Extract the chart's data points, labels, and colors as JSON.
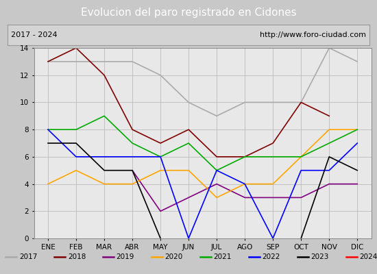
{
  "title": "Evolucion del paro registrado en Cidones",
  "subtitle_left": "2017 - 2024",
  "subtitle_right": "http://www.foro-ciudad.com",
  "months": [
    "ENE",
    "FEB",
    "MAR",
    "ABR",
    "MAY",
    "JUN",
    "JUL",
    "AGO",
    "SEP",
    "OCT",
    "NOV",
    "DIC"
  ],
  "ylim": [
    0,
    14
  ],
  "yticks": [
    0,
    2,
    4,
    6,
    8,
    10,
    12,
    14
  ],
  "series": {
    "2017": {
      "color": "#aaaaaa",
      "values": [
        13,
        13,
        13,
        13,
        12,
        10,
        9,
        10,
        10,
        10,
        14,
        13
      ]
    },
    "2018": {
      "color": "#800000",
      "values": [
        13,
        14,
        12,
        8,
        7,
        8,
        6,
        6,
        7,
        10,
        9,
        null
      ]
    },
    "2019": {
      "color": "#800080",
      "values": [
        7,
        null,
        null,
        5,
        2,
        3,
        4,
        3,
        3,
        3,
        4,
        4
      ]
    },
    "2020": {
      "color": "#ffa500",
      "values": [
        4,
        5,
        4,
        4,
        5,
        5,
        3,
        4,
        4,
        6,
        8,
        8
      ]
    },
    "2021": {
      "color": "#00aa00",
      "values": [
        8,
        8,
        9,
        7,
        6,
        7,
        5,
        6,
        6,
        6,
        7,
        8
      ]
    },
    "2022": {
      "color": "#0000ff",
      "values": [
        8,
        6,
        6,
        6,
        6,
        0,
        5,
        4,
        0,
        5,
        5,
        7
      ]
    },
    "2023": {
      "color": "#000000",
      "values": [
        7,
        7,
        5,
        5,
        0,
        null,
        null,
        null,
        null,
        0,
        6,
        5
      ]
    },
    "2024": {
      "color": "#ff0000",
      "values": [
        4,
        null,
        null,
        null,
        null,
        null,
        null,
        null,
        null,
        null,
        null,
        null
      ]
    }
  },
  "outer_bg": "#c8c8c8",
  "plot_bg_color": "#e8e8e8",
  "title_bg_color": "#4f81bd",
  "title_text_color": "#ffffff",
  "header_bg_color": "#d4d4d4",
  "legend_bg_color": "#d4d4d4"
}
